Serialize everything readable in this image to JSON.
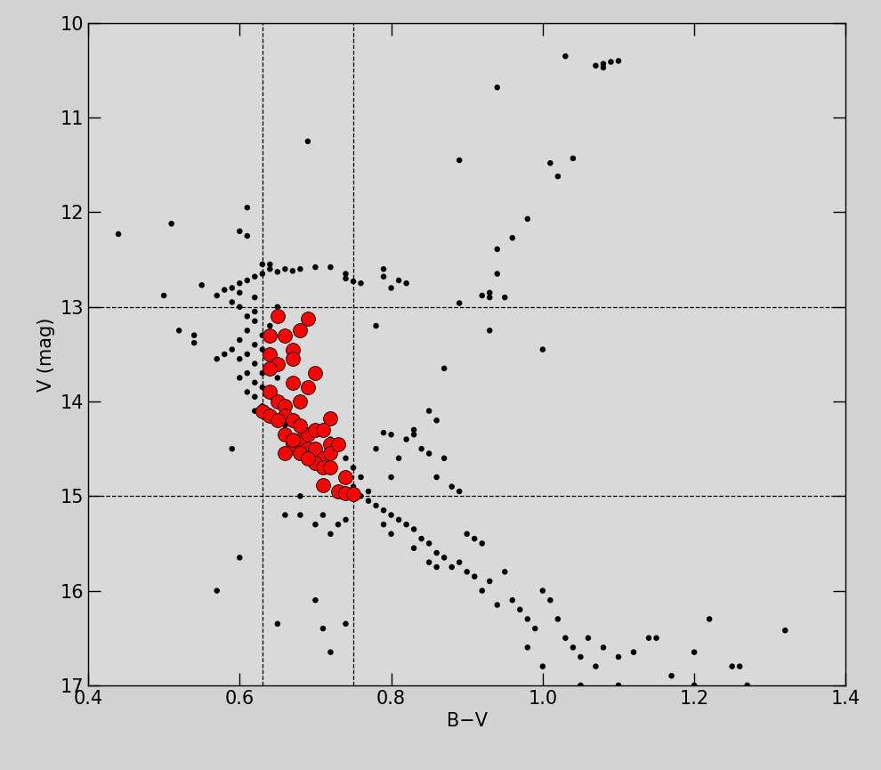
{
  "chart_data": {
    "type": "scatter",
    "x_label": "B−V",
    "y_label": "V (mag)",
    "xlim": [
      0.4,
      1.4
    ],
    "ylim": [
      17,
      10
    ],
    "xticks": [
      0.4,
      0.6,
      0.8,
      1.0,
      1.2,
      1.4
    ],
    "yticks": [
      10,
      11,
      12,
      13,
      14,
      15,
      16,
      17
    ],
    "vlines": [
      0.63,
      0.75
    ],
    "hlines": [
      13,
      15
    ],
    "series": [
      {
        "color": "#000000",
        "marker": "o",
        "x": [
          1.03,
          1.07,
          1.08,
          1.08,
          1.09,
          1.1,
          0.94,
          0.69,
          0.89,
          1.04,
          1.01,
          1.02,
          0.98,
          0.96,
          0.94,
          0.94,
          0.95,
          0.93,
          0.92,
          0.93,
          0.89,
          1.0,
          0.78,
          0.44,
          0.51,
          0.5,
          0.52,
          0.54,
          0.54,
          0.55,
          0.61,
          0.6,
          0.61,
          0.57,
          0.58,
          0.59,
          0.6,
          0.61,
          0.62,
          0.63,
          0.64,
          0.65,
          0.66,
          0.67,
          0.68,
          0.7,
          0.72,
          0.74,
          0.75,
          0.76,
          0.74,
          0.79,
          0.79,
          0.81,
          0.82,
          0.8,
          0.6,
          0.62,
          0.63,
          0.64,
          0.59,
          0.6,
          0.61,
          0.62,
          0.61,
          0.6,
          0.62,
          0.61,
          0.6,
          0.63,
          0.62,
          0.61,
          0.6,
          0.62,
          0.63,
          0.61,
          0.62,
          0.64,
          0.63,
          0.62,
          0.64,
          0.65,
          0.66,
          0.59,
          0.58,
          0.57,
          0.63,
          0.64,
          0.65,
          0.62,
          0.63,
          0.65,
          0.68,
          0.7,
          0.72,
          0.73,
          0.74,
          0.75,
          0.76,
          0.75,
          0.77,
          0.76,
          0.78,
          0.8,
          0.79,
          0.82,
          0.83,
          0.81,
          0.84,
          0.85,
          0.87,
          0.86,
          0.88,
          0.89,
          0.8,
          0.77,
          0.78,
          0.79,
          0.8,
          0.81,
          0.79,
          0.82,
          0.83,
          0.8,
          0.84,
          0.85,
          0.83,
          0.86,
          0.87,
          0.85,
          0.88,
          0.86,
          0.89,
          0.9,
          0.91,
          0.92,
          0.9,
          0.91,
          0.93,
          0.92,
          0.95,
          0.96,
          0.94,
          0.97,
          0.98,
          0.99,
          1.0,
          1.01,
          1.02,
          1.03,
          1.04,
          1.05,
          1.06,
          1.07,
          1.08,
          1.1,
          1.12,
          1.14,
          1.15,
          1.17,
          1.2,
          1.22,
          1.25,
          1.26,
          1.27,
          1.32,
          1.1,
          1.05,
          1.2,
          0.98,
          1.0,
          0.68,
          0.7,
          0.72,
          0.66,
          0.6,
          0.57,
          0.65,
          0.7,
          0.71,
          0.72,
          0.74,
          0.59,
          0.68,
          0.71,
          0.73,
          0.74,
          0.87,
          0.93,
          0.85,
          0.86,
          0.83
        ],
        "values": [
          10.35,
          10.45,
          10.47,
          10.43,
          10.41,
          10.4,
          10.68,
          11.25,
          11.45,
          11.43,
          11.48,
          11.62,
          12.07,
          12.27,
          12.39,
          12.65,
          12.9,
          12.9,
          12.88,
          12.85,
          12.96,
          13.45,
          13.2,
          12.23,
          12.12,
          12.88,
          13.25,
          13.3,
          13.38,
          12.77,
          11.95,
          12.2,
          12.25,
          12.88,
          12.82,
          12.8,
          12.75,
          12.72,
          12.68,
          12.65,
          12.6,
          12.63,
          12.6,
          12.62,
          12.6,
          12.58,
          12.58,
          12.65,
          12.73,
          12.75,
          12.7,
          12.6,
          12.68,
          12.72,
          12.75,
          12.8,
          12.85,
          12.9,
          12.55,
          12.55,
          12.95,
          13.0,
          13.1,
          13.15,
          13.25,
          13.35,
          13.4,
          13.5,
          13.55,
          13.45,
          13.6,
          13.7,
          13.75,
          13.8,
          13.85,
          13.9,
          13.95,
          13.9,
          14.05,
          14.1,
          14.1,
          14.2,
          14.25,
          13.45,
          13.5,
          13.55,
          13.3,
          13.2,
          13.0,
          13.05,
          13.7,
          13.75,
          14.3,
          14.35,
          14.4,
          14.45,
          14.6,
          14.7,
          14.8,
          14.9,
          14.95,
          15.0,
          14.5,
          14.35,
          14.33,
          14.4,
          14.35,
          14.6,
          14.5,
          14.55,
          14.6,
          14.8,
          14.9,
          14.95,
          14.8,
          15.05,
          15.1,
          15.15,
          15.2,
          15.25,
          15.3,
          15.3,
          15.35,
          15.4,
          15.45,
          15.5,
          15.55,
          15.6,
          15.65,
          15.7,
          15.75,
          15.75,
          15.7,
          15.4,
          15.45,
          15.5,
          15.8,
          15.85,
          15.9,
          16.0,
          15.8,
          16.1,
          16.15,
          16.2,
          16.3,
          16.4,
          16.0,
          16.1,
          16.3,
          16.5,
          16.6,
          16.7,
          16.5,
          16.8,
          16.6,
          16.7,
          16.65,
          16.5,
          16.5,
          16.9,
          16.65,
          16.3,
          16.8,
          16.8,
          17.0,
          16.42,
          17.0,
          17.0,
          17.0,
          16.6,
          16.8,
          15.2,
          15.3,
          15.4,
          15.2,
          15.65,
          16.0,
          16.35,
          16.1,
          16.4,
          16.65,
          16.35,
          14.5,
          15.0,
          15.2,
          15.3,
          15.25,
          13.65,
          13.25,
          14.1,
          14.2,
          14.3
        ]
      },
      {
        "color": "#ff0000",
        "marker": "o",
        "x": [
          0.65,
          0.69,
          0.64,
          0.66,
          0.68,
          0.64,
          0.67,
          0.67,
          0.65,
          0.64,
          0.7,
          0.67,
          0.69,
          0.64,
          0.65,
          0.66,
          0.68,
          0.63,
          0.64,
          0.66,
          0.67,
          0.65,
          0.72,
          0.66,
          0.68,
          0.69,
          0.7,
          0.71,
          0.67,
          0.69,
          0.66,
          0.68,
          0.7,
          0.72,
          0.71,
          0.7,
          0.72,
          0.73,
          0.71,
          0.72,
          0.69,
          0.74,
          0.71,
          0.73,
          0.74,
          0.75,
          0.67,
          0.68
        ],
        "values": [
          13.1,
          13.12,
          13.3,
          13.3,
          13.25,
          13.5,
          13.45,
          13.55,
          13.6,
          13.65,
          13.7,
          13.8,
          13.85,
          13.9,
          14.0,
          14.05,
          14.0,
          14.1,
          14.15,
          14.15,
          14.2,
          14.2,
          14.18,
          14.35,
          14.4,
          14.35,
          14.3,
          14.3,
          14.45,
          14.5,
          14.55,
          14.55,
          14.5,
          14.45,
          14.6,
          14.65,
          14.55,
          14.45,
          14.7,
          14.7,
          14.6,
          14.8,
          14.88,
          14.95,
          14.97,
          14.98,
          14.4,
          14.25
        ]
      }
    ]
  }
}
